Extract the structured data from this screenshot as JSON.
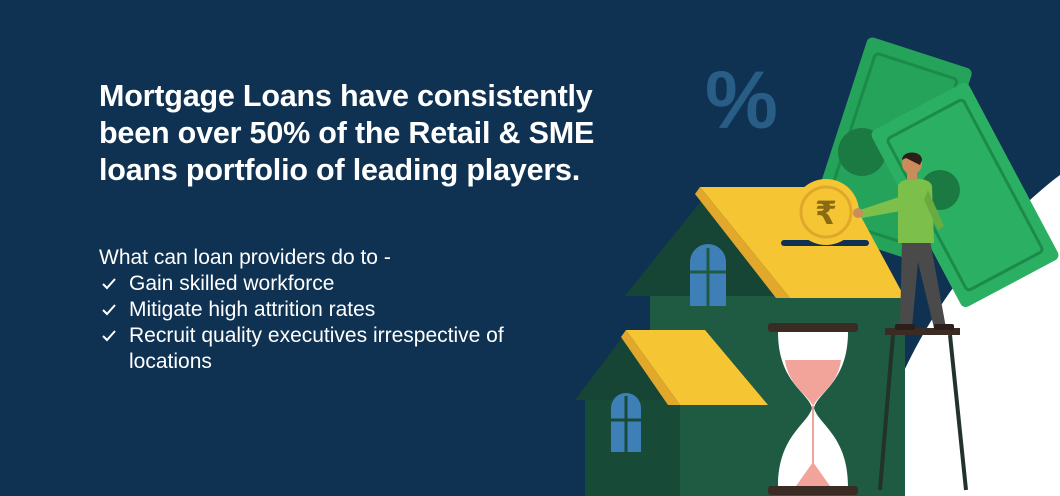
{
  "headline": "Mortgage Loans have consistently been over 50% of the Retail & SME loans portfolio of leading players.",
  "question": "What can loan providers do to -",
  "checklist": [
    "Gain skilled workforce",
    "Mitigate high attrition rates",
    "Recruit quality executives irrespective of locations"
  ],
  "illustration": {
    "percent_symbol": "%",
    "coin_symbol": "₹"
  },
  "colors": {
    "background": "#0f3252",
    "house_green": "#1f5a43",
    "house_dark": "#164536",
    "roof_yellow": "#f6c534",
    "money_green": "#26a35a",
    "window_blue": "#3e7fb8",
    "sand_pink": "#f2a39a"
  }
}
